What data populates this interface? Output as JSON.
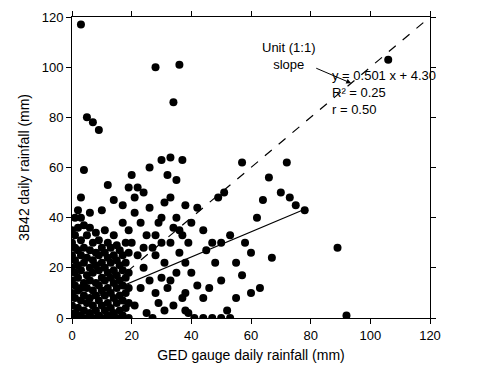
{
  "chart_data": {
    "type": "scatter",
    "x_label": "GED gauge daily rainfall (mm)",
    "y_label": "3B42 daily rainfall (mm)",
    "xlim": [
      0,
      120
    ],
    "ylim": [
      0,
      120
    ],
    "xticks": [
      0,
      20,
      40,
      60,
      80,
      100,
      120
    ],
    "yticks": [
      0,
      20,
      40,
      60,
      80,
      100,
      120
    ],
    "grid": false,
    "annotations": [
      {
        "text": [
          "Unit (1:1)",
          "slope"
        ]
      },
      {
        "text": [
          "y = 0.501 x + 4.30",
          "R² = 0.25",
          "r = 0.50"
        ]
      }
    ],
    "series": [
      {
        "type": "scatter",
        "marker": "circle",
        "color": "#000000",
        "x": [
          3,
          5,
          7,
          9,
          4,
          3,
          2,
          1,
          3,
          6,
          12,
          14,
          10,
          17,
          19,
          20,
          22,
          21,
          24,
          26,
          28,
          30,
          33,
          34,
          36,
          37,
          32,
          35,
          33,
          30,
          38,
          40,
          42,
          45,
          47,
          49,
          51,
          53,
          55,
          57,
          58,
          60,
          62,
          64,
          66,
          67,
          70,
          72,
          73,
          75,
          78,
          60,
          63,
          50,
          52,
          55,
          57,
          42,
          44,
          46,
          38,
          40,
          36,
          30,
          28,
          44,
          48,
          50,
          89,
          92,
          106,
          53,
          50,
          47,
          44,
          41,
          39,
          20,
          22,
          24,
          25,
          26,
          27,
          28,
          29,
          31,
          32,
          33,
          34,
          35,
          36,
          37,
          38,
          39,
          21,
          23,
          25,
          27,
          29,
          31,
          33,
          35,
          37,
          23,
          21,
          26,
          31,
          34,
          38,
          30,
          28,
          24,
          0,
          0,
          0,
          0,
          0,
          0,
          0,
          0,
          1,
          1,
          1,
          1,
          1,
          1,
          1,
          2,
          2,
          2,
          2,
          2,
          2,
          2,
          3,
          3,
          3,
          3,
          3,
          3,
          4,
          4,
          4,
          4,
          4,
          4,
          5,
          5,
          5,
          5,
          5,
          5,
          6,
          6,
          6,
          6,
          6,
          6,
          7,
          7,
          7,
          7,
          7,
          7,
          8,
          8,
          8,
          8,
          8,
          8,
          9,
          9,
          9,
          9,
          9,
          9,
          10,
          10,
          10,
          10,
          10,
          10,
          11,
          11,
          11,
          11,
          11,
          11,
          12,
          12,
          12,
          12,
          12,
          12,
          13,
          13,
          13,
          13,
          13,
          13,
          14,
          14,
          14,
          14,
          14,
          14,
          15,
          15,
          15,
          15,
          15,
          15,
          16,
          16,
          16,
          16,
          16,
          17,
          17,
          17,
          17,
          17,
          17,
          18,
          18,
          18,
          18,
          18,
          19,
          19,
          19,
          19,
          19,
          19
        ],
        "values": [
          117,
          80,
          78,
          75,
          59,
          48,
          43,
          40,
          40,
          42,
          53,
          47,
          43,
          45,
          52,
          57,
          52,
          48,
          50,
          60,
          100,
          63,
          64,
          86,
          101,
          63,
          57,
          55,
          48,
          40,
          45,
          38,
          44,
          27,
          30,
          48,
          50,
          33,
          22,
          62,
          30,
          26,
          40,
          47,
          56,
          24,
          50,
          62,
          48,
          45,
          43,
          10,
          12,
          15,
          3,
          8,
          17,
          13,
          8,
          12,
          10,
          18,
          35,
          30,
          25,
          35,
          22,
          30,
          28,
          1,
          103,
          0,
          0,
          0,
          0,
          0,
          2,
          30,
          25,
          20,
          33,
          15,
          28,
          10,
          38,
          22,
          12,
          30,
          5,
          18,
          26,
          8,
          22,
          30,
          5,
          12,
          2,
          0,
          6,
          3,
          15,
          40,
          33,
          38,
          42,
          44,
          46,
          36,
          3,
          16,
          33,
          28,
          0,
          5,
          10,
          15,
          20,
          25,
          30,
          35,
          2,
          8,
          13,
          18,
          23,
          28,
          33,
          0,
          4,
          11,
          16,
          21,
          27,
          36,
          1,
          7,
          12,
          19,
          25,
          31,
          3,
          9,
          14,
          22,
          28,
          37,
          0,
          6,
          12,
          17,
          24,
          33,
          2,
          8,
          15,
          20,
          27,
          36,
          0,
          5,
          11,
          18,
          23,
          30,
          3,
          9,
          14,
          21,
          26,
          34,
          1,
          7,
          13,
          19,
          25,
          31,
          0,
          5,
          11,
          16,
          22,
          28,
          3,
          9,
          15,
          20,
          26,
          35,
          1,
          6,
          12,
          18,
          24,
          30,
          0,
          4,
          10,
          16,
          22,
          28,
          2,
          8,
          14,
          19,
          25,
          33,
          0,
          6,
          12,
          17,
          23,
          29,
          3,
          9,
          15,
          21,
          27,
          1,
          7,
          13,
          19,
          25,
          38,
          4,
          10,
          16,
          22,
          30,
          0,
          6,
          12,
          18,
          26,
          35
        ]
      },
      {
        "type": "line",
        "line_style": "solid",
        "color": "#000000",
        "x": [
          0,
          78
        ],
        "values": [
          4.3,
          43.38
        ]
      },
      {
        "type": "line",
        "line_style": "dashed",
        "color": "#000000",
        "x": [
          0,
          120
        ],
        "values": [
          0,
          120
        ]
      }
    ]
  }
}
